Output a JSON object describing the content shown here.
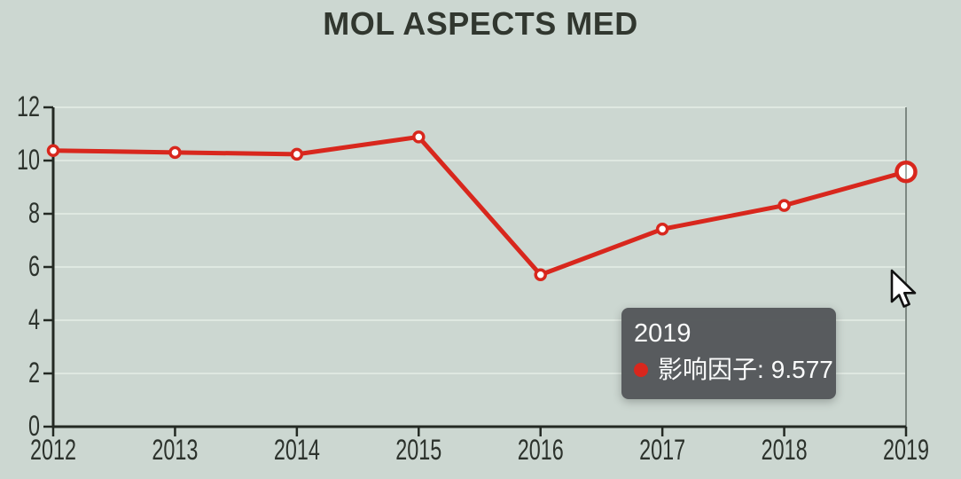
{
  "header": {
    "title": "MOL ASPECTS MED"
  },
  "chart_data": {
    "type": "line",
    "title": "MOL ASPECTS MED",
    "categories": [
      "2012",
      "2013",
      "2014",
      "2015",
      "2016",
      "2017",
      "2018",
      "2019"
    ],
    "series": [
      {
        "name": "影响因子",
        "values": [
          10.375,
          10.305,
          10.238,
          10.886,
          5.708,
          7.425,
          8.313,
          9.577
        ]
      }
    ],
    "xlabel": "",
    "ylabel": "",
    "ylim": [
      0,
      12
    ],
    "yticks": [
      0,
      2,
      4,
      6,
      8,
      10,
      12
    ],
    "grid": true,
    "legend": "none",
    "highlight": {
      "category": "2019",
      "value": 9.577
    }
  },
  "tooltip": {
    "title": "2019",
    "label": "影响因子:",
    "value": "9.577"
  },
  "colors": {
    "background": "#ccd7d1",
    "series_red": "#d8271d",
    "marker_fill": "#ffffff",
    "axis": "#232923",
    "text": "#2c322c",
    "gridline": "#dfe8e1",
    "crosshair": "#7d8882",
    "tooltip_bg": "#54575a",
    "tooltip_text": "#fafbfb"
  }
}
